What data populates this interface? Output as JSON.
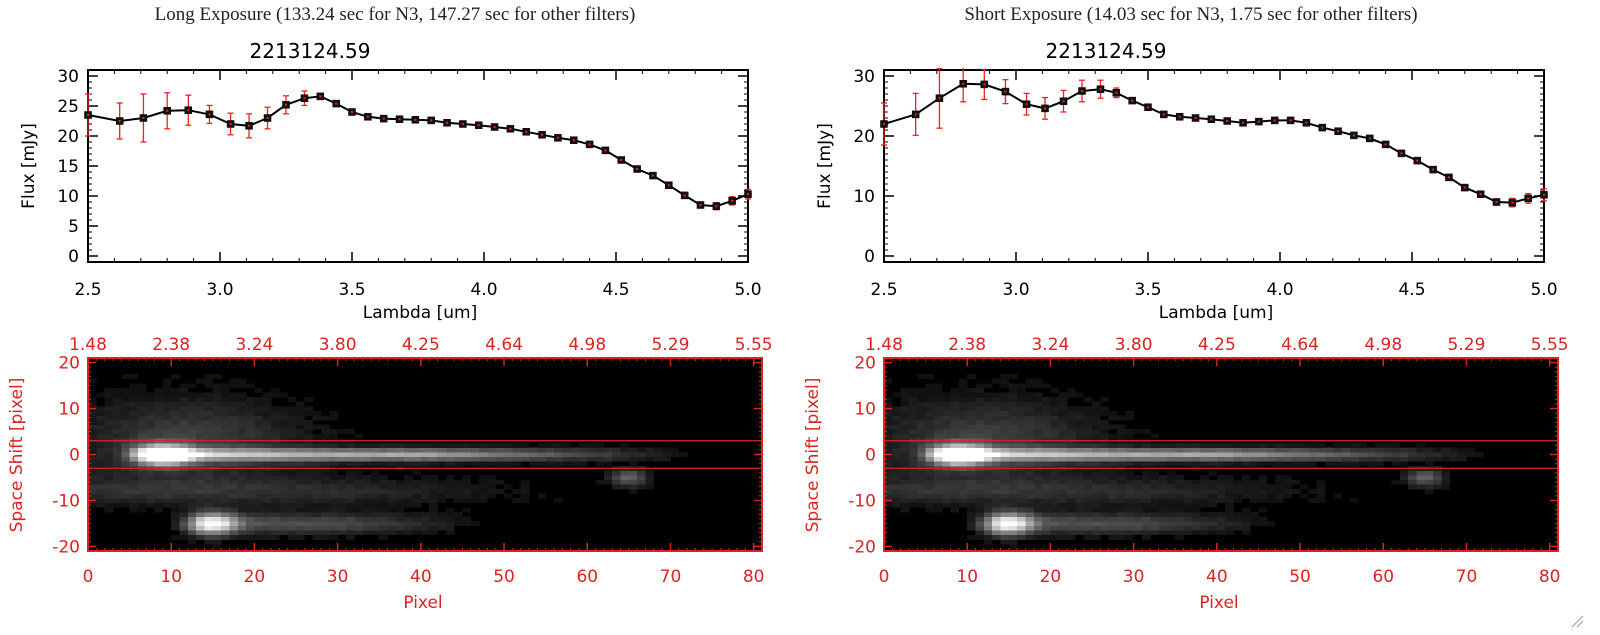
{
  "colors": {
    "axis_black": "#000000",
    "error_red": "#ee2222",
    "image_axis_red": "#dd2222"
  },
  "panels": [
    {
      "caption": "Long Exposure (133.24 sec for N3, 147.27 sec for other filters)",
      "object_id": "2213124.59",
      "chart_data": [
        {
          "type": "line",
          "title": "2213124.59",
          "xlabel": "Lambda [um]",
          "ylabel": "Flux [mJy]",
          "xlim": [
            2.5,
            5.0
          ],
          "ylim": [
            -1,
            31
          ],
          "xticks": [
            "2.5",
            "3.0",
            "3.5",
            "4.0",
            "4.5",
            "5.0"
          ],
          "yticks": [
            "0",
            "5",
            "10",
            "15",
            "20",
            "25",
            "30"
          ],
          "grid": false,
          "series": [
            {
              "x": [
                2.5,
                2.62,
                2.71,
                2.8,
                2.88,
                2.96,
                3.04,
                3.11,
                3.18,
                3.25,
                3.32,
                3.38,
                3.44,
                3.5,
                3.56,
                3.62,
                3.68,
                3.74,
                3.8,
                3.86,
                3.92,
                3.98,
                4.04,
                4.1,
                4.16,
                4.22,
                4.28,
                4.34,
                4.4,
                4.46,
                4.52,
                4.58,
                4.64,
                4.7,
                4.76,
                4.82,
                4.88,
                4.94,
                5.0
              ],
              "y": [
                23.5,
                22.5,
                23.0,
                24.2,
                24.3,
                23.6,
                22.0,
                21.7,
                23.0,
                25.2,
                26.3,
                26.6,
                25.4,
                24.0,
                23.2,
                22.9,
                22.8,
                22.7,
                22.6,
                22.2,
                22.0,
                21.8,
                21.5,
                21.2,
                20.7,
                20.2,
                19.7,
                19.3,
                18.6,
                17.6,
                16.0,
                14.5,
                13.4,
                11.8,
                10.1,
                8.5,
                8.3,
                9.2,
                10.3
              ],
              "yerr": [
                3.5,
                3.0,
                4.0,
                3.0,
                2.5,
                1.5,
                1.8,
                2.0,
                1.8,
                1.5,
                1.2,
                0.5,
                0.3,
                0.3,
                0.3,
                0.3,
                0.3,
                0.3,
                0.3,
                0.3,
                0.3,
                0.3,
                0.3,
                0.3,
                0.3,
                0.3,
                0.3,
                0.3,
                0.3,
                0.3,
                0.3,
                0.3,
                0.3,
                0.3,
                0.3,
                0.4,
                0.6,
                0.7,
                0.8
              ]
            }
          ]
        },
        {
          "type": "heatmap",
          "xlabel": "Pixel",
          "ylabel": "Space Shift [pixel]",
          "xlim": [
            0,
            81
          ],
          "ylim": [
            -21,
            21
          ],
          "xticks": [
            "0",
            "10",
            "20",
            "30",
            "40",
            "50",
            "60",
            "70",
            "80"
          ],
          "yticks": [
            "-20",
            "-10",
            "0",
            "10",
            "20"
          ],
          "top_xticks": [
            "1.48",
            "2.38",
            "3.24",
            "3.80",
            "4.25",
            "4.64",
            "4.98",
            "5.29",
            "5.55"
          ],
          "aperture_lines": [
            3,
            -3
          ]
        }
      ]
    },
    {
      "caption": "Short Exposure (14.03 sec for N3, 1.75 sec for other filters)",
      "object_id": "2213124.59",
      "chart_data": [
        {
          "type": "line",
          "title": "2213124.59",
          "xlabel": "Lambda [um]",
          "ylabel": "Flux [mJy]",
          "xlim": [
            2.5,
            5.0
          ],
          "ylim": [
            -1,
            31
          ],
          "xticks": [
            "2.5",
            "3.0",
            "3.5",
            "4.0",
            "4.5",
            "5.0"
          ],
          "yticks": [
            "0",
            "10",
            "20",
            "30"
          ],
          "grid": false,
          "series": [
            {
              "x": [
                2.5,
                2.62,
                2.71,
                2.8,
                2.88,
                2.96,
                3.04,
                3.11,
                3.18,
                3.25,
                3.32,
                3.38,
                3.44,
                3.5,
                3.56,
                3.62,
                3.68,
                3.74,
                3.8,
                3.86,
                3.92,
                3.98,
                4.04,
                4.1,
                4.16,
                4.22,
                4.28,
                4.34,
                4.4,
                4.46,
                4.52,
                4.58,
                4.64,
                4.7,
                4.76,
                4.82,
                4.88,
                4.94,
                5.0
              ],
              "y": [
                22.0,
                23.6,
                26.3,
                28.7,
                28.6,
                27.4,
                25.3,
                24.6,
                25.8,
                27.5,
                27.8,
                27.2,
                25.9,
                24.8,
                23.6,
                23.2,
                23.0,
                22.8,
                22.5,
                22.2,
                22.4,
                22.6,
                22.6,
                22.2,
                21.4,
                20.8,
                20.1,
                19.6,
                18.6,
                17.1,
                15.9,
                14.4,
                13.1,
                11.4,
                10.3,
                9.0,
                8.9,
                9.6,
                10.2
              ],
              "yerr": [
                3.5,
                3.5,
                5.0,
                3.0,
                2.5,
                2.0,
                1.8,
                1.8,
                1.8,
                1.8,
                1.5,
                0.8,
                0.4,
                0.3,
                0.3,
                0.3,
                0.3,
                0.3,
                0.3,
                0.3,
                0.3,
                0.3,
                0.3,
                0.3,
                0.3,
                0.3,
                0.3,
                0.3,
                0.3,
                0.3,
                0.3,
                0.3,
                0.3,
                0.3,
                0.3,
                0.5,
                0.7,
                0.8,
                1.0
              ]
            }
          ]
        },
        {
          "type": "heatmap",
          "xlabel": "Pixel",
          "ylabel": "Space Shift [pixel]",
          "xlim": [
            0,
            81
          ],
          "ylim": [
            -21,
            21
          ],
          "xticks": [
            "0",
            "10",
            "20",
            "30",
            "40",
            "50",
            "60",
            "70",
            "80"
          ],
          "yticks": [
            "-20",
            "-10",
            "0",
            "10",
            "20"
          ],
          "top_xticks": [
            "1.48",
            "2.38",
            "3.24",
            "3.80",
            "4.25",
            "4.64",
            "4.98",
            "5.29",
            "5.55"
          ],
          "aperture_lines": [
            3,
            -3
          ]
        }
      ]
    }
  ]
}
